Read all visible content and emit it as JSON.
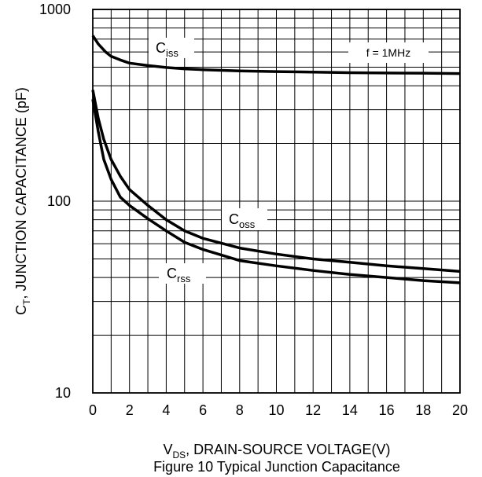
{
  "chart_data": {
    "type": "line",
    "caption": "Figure 10  Typical Junction Capacitance",
    "xlabel": {
      "main": "V",
      "sub": "DS",
      "rest": ", DRAIN-SOURCE VOLTAGE(V)"
    },
    "ylabel": {
      "main": "C",
      "sub": "T",
      "rest": ", JUNCTION CAPACITANCE (pF)"
    },
    "xlim": [
      0,
      20
    ],
    "ylim": [
      10,
      1000
    ],
    "yscale": "log",
    "grid": true,
    "x_ticks": [
      "0",
      "2",
      "4",
      "6",
      "8",
      "10",
      "12",
      "14",
      "16",
      "18",
      "20"
    ],
    "y_ticks": [
      "10",
      "100",
      "1000"
    ],
    "annotations": [
      {
        "text": "f = 1MHz"
      }
    ],
    "series": [
      {
        "name": "Ciss",
        "label_main": "C",
        "label_sub": "iss",
        "x": [
          0,
          0.3,
          0.7,
          1,
          1.5,
          2,
          3,
          4,
          5,
          6,
          8,
          10,
          12,
          14,
          16,
          18,
          20
        ],
        "y": [
          730,
          660,
          600,
          570,
          545,
          525,
          510,
          498,
          490,
          485,
          478,
          474,
          471,
          468,
          466,
          465,
          463
        ]
      },
      {
        "name": "Coss",
        "label_main": "C",
        "label_sub": "oss",
        "x": [
          0,
          0.3,
          0.6,
          1,
          1.5,
          2,
          3,
          4,
          5,
          6,
          8,
          10,
          12,
          14,
          16,
          18,
          20
        ],
        "y": [
          380,
          270,
          210,
          165,
          135,
          115,
          95,
          80,
          70,
          64,
          57,
          53,
          50,
          48,
          46,
          44.5,
          43
        ]
      },
      {
        "name": "Crss",
        "label_main": "C",
        "label_sub": "rss",
        "x": [
          0,
          0.3,
          0.6,
          1,
          1.5,
          2,
          3,
          4,
          5,
          6,
          8,
          10,
          12,
          14,
          16,
          18,
          20
        ],
        "y": [
          340,
          230,
          165,
          130,
          105,
          95,
          81,
          70,
          61,
          56,
          49,
          46,
          43.5,
          41.5,
          40,
          38.5,
          37.5
        ]
      }
    ]
  }
}
